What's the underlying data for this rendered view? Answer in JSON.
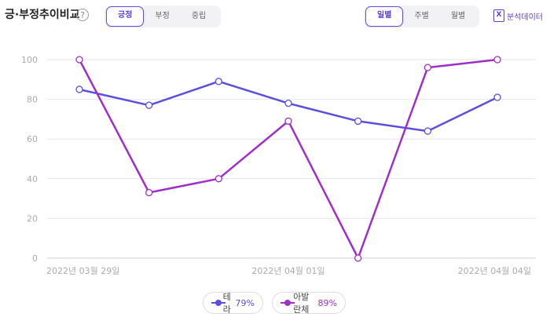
{
  "header": {
    "title": "긍·부정추이비교",
    "help_icon_text": "?",
    "sentiment_tabs": [
      {
        "label": "긍정",
        "active": true
      },
      {
        "label": "부정",
        "active": false
      },
      {
        "label": "중립",
        "active": false
      }
    ],
    "period_tabs": [
      {
        "label": "일별",
        "active": true
      },
      {
        "label": "주별",
        "active": false
      },
      {
        "label": "월별",
        "active": false
      }
    ],
    "analysis_data_label": "분석데이터",
    "analysis_icon_text": "X"
  },
  "legend": [
    {
      "name": "테라",
      "percent": "79%"
    },
    {
      "name": "아발란체",
      "percent": "89%"
    }
  ],
  "chart_data": {
    "type": "line",
    "x": [
      "2022년 03월 29일",
      "",
      "",
      "2022년 04월 01일",
      "",
      "",
      "2022년 04월 04일"
    ],
    "series": [
      {
        "name": "테라",
        "color": "#5b4fe0",
        "values": [
          85,
          77,
          89,
          78,
          69,
          64,
          81
        ]
      },
      {
        "name": "아발란체",
        "color": "#a02fc8",
        "values": [
          100,
          33,
          40,
          69,
          0,
          96,
          100
        ]
      }
    ],
    "y_ticks": [
      0,
      20,
      40,
      60,
      80,
      100
    ],
    "ylim": [
      0,
      100
    ],
    "grid": true,
    "legend_position": "bottom-center"
  }
}
